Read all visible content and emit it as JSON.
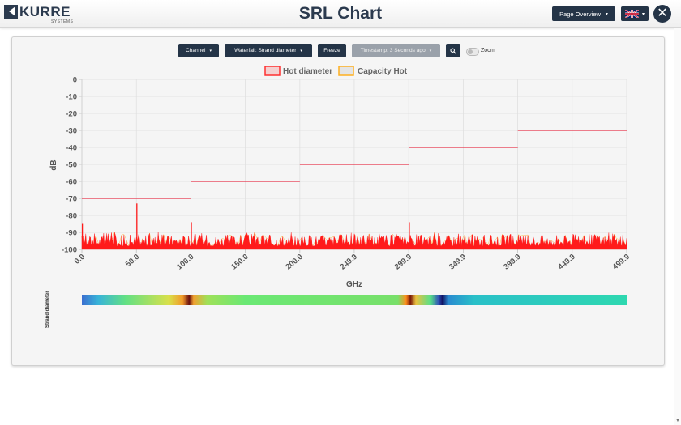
{
  "header": {
    "logo_text": "KURRE",
    "logo_sub": "SYSTEMS",
    "title": "SRL Chart",
    "page_select": "Page Overview",
    "language_flag": "uk-flag-icon",
    "close_icon": "close-icon"
  },
  "toolbar": {
    "channel": "Channel",
    "waterfall": "Waterfall: Strand diameter",
    "freeze": "Freeze",
    "timestamp": "Timestamp: 3 Seconds ago",
    "search_icon": "search-icon",
    "zoom": "Zoom"
  },
  "chart_data": {
    "type": "line",
    "legend": [
      {
        "name": "Hot diameter",
        "color": "#ff2020"
      },
      {
        "name": "Capacity Hot",
        "color": "#ffb020"
      }
    ],
    "legend_position": "top",
    "xlabel": "GHz",
    "ylabel": "dB",
    "xlim": [
      0,
      499.9
    ],
    "ylim": [
      -100,
      0
    ],
    "x_ticks": [
      "0.0",
      "50.0",
      "100.0",
      "150.0",
      "200.0",
      "249.9",
      "299.9",
      "349.9",
      "399.9",
      "449.9",
      "499.9"
    ],
    "y_ticks": [
      "0",
      "-10",
      "-20",
      "-30",
      "-40",
      "-50",
      "-60",
      "-70",
      "-80",
      "-90",
      "-100"
    ],
    "grid": true,
    "series": [
      {
        "name": "Capacity Hot",
        "segments": [
          {
            "x": [
              0,
              100
            ],
            "y": -70
          },
          {
            "x": [
              100,
              200
            ],
            "y": -60
          },
          {
            "x": [
              200,
              300
            ],
            "y": -50
          },
          {
            "x": [
              300,
              400
            ],
            "y": -40
          },
          {
            "x": [
              400,
              499.9
            ],
            "y": -30
          }
        ]
      },
      {
        "name": "Hot diameter",
        "noise_floor_db": [
          -100,
          -90
        ],
        "peaks": [
          {
            "x": 0,
            "y": -85
          },
          {
            "x": 50,
            "y": -73
          },
          {
            "x": 100,
            "y": -84
          },
          {
            "x": 300,
            "y": -84
          }
        ]
      }
    ]
  },
  "waterfall": {
    "label": "Strand diameter"
  },
  "colors": {
    "dark_button": "#243447",
    "title_color": "#2b3a4e",
    "capacity_line": "#e8344a",
    "noise_fill": "#ff1a1a",
    "noise_top": "#ffc020"
  }
}
